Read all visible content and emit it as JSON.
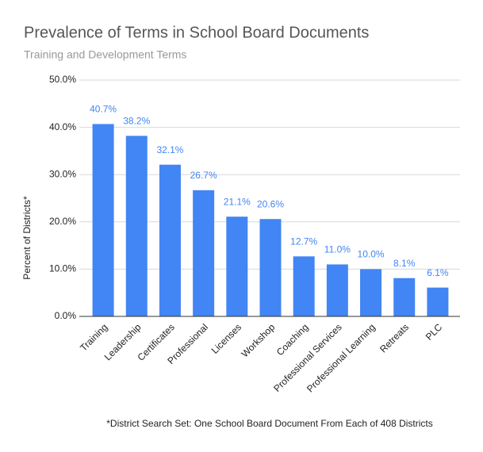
{
  "chart_data": {
    "type": "bar",
    "title": "Prevalence of Terms in School Board Documents",
    "subtitle": "Training and Development Terms",
    "y_label": "Percent of Districts*",
    "footnote": "*District Search Set: One School Board Document From Each of 408 Districts",
    "categories": [
      "Training",
      "Leadership",
      "Certificates",
      "Professional",
      "Licenses",
      "Workshop",
      "Coaching",
      "Professional Services",
      "Professional Learning",
      "Retreats",
      "PLC"
    ],
    "values": [
      40.7,
      38.2,
      32.1,
      26.7,
      21.1,
      20.6,
      12.7,
      11.0,
      10.0,
      8.1,
      6.1
    ],
    "value_labels": [
      "40.7%",
      "38.2%",
      "32.1%",
      "26.7%",
      "21.1%",
      "20.6%",
      "12.7%",
      "11.0%",
      "10.0%",
      "8.1%",
      "6.1%"
    ],
    "color": "#4285f4",
    "ylim": [
      0,
      50
    ],
    "yticks": [
      {
        "value": 0,
        "label": "0.0%"
      },
      {
        "value": 10,
        "label": "10.0%"
      },
      {
        "value": 20,
        "label": "20.0%"
      },
      {
        "value": 30,
        "label": "30.0%"
      },
      {
        "value": 40,
        "label": "40.0%"
      },
      {
        "value": 50,
        "label": "50.0%"
      }
    ],
    "grid": true
  }
}
